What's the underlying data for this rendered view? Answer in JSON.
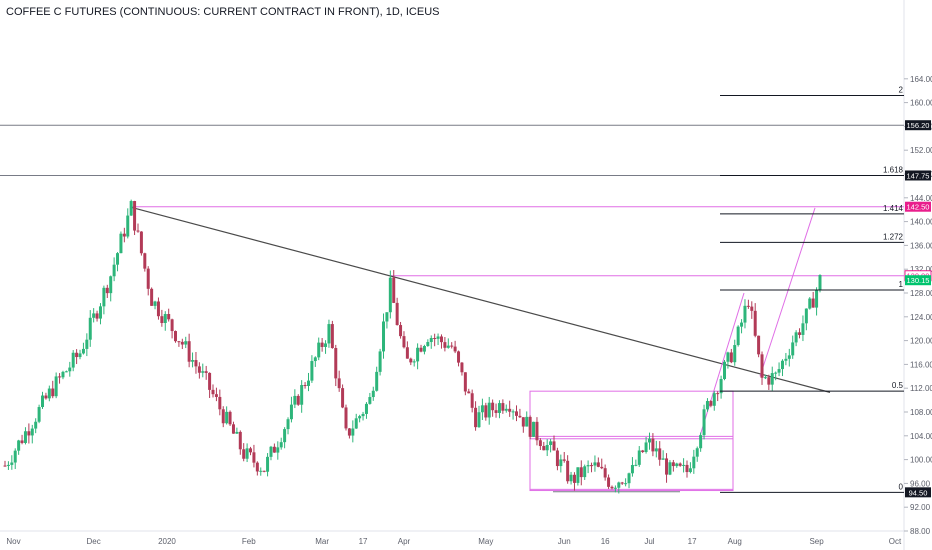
{
  "chart_data": {
    "type": "candlestick",
    "title": "COFFEE C FUTURES (CONTINUOUS: CURRENT CONTRACT IN FRONT), 1D, ICEUS",
    "ylim": [
      88,
      164
    ],
    "y_ticks": [
      "88.00",
      "92.00",
      "96.00",
      "100.00",
      "104.00",
      "108.00",
      "112.00",
      "116.00",
      "120.00",
      "124.00",
      "128.00",
      "132.00",
      "136.00",
      "140.00",
      "144.00",
      "148.00",
      "152.00",
      "156.00",
      "160.00",
      "164.00"
    ],
    "x_ticks": [
      {
        "label": "Nov",
        "day": 5
      },
      {
        "label": "Dec",
        "day": 52
      },
      {
        "label": "2020",
        "day": 95
      },
      {
        "label": "Feb",
        "day": 143
      },
      {
        "label": "Mar",
        "day": 186
      },
      {
        "label": "17",
        "day": 210
      },
      {
        "label": "Apr",
        "day": 234
      },
      {
        "label": "May",
        "day": 282
      },
      {
        "label": "Jun",
        "day": 328
      },
      {
        "label": "16",
        "day": 352
      },
      {
        "label": "Jul",
        "day": 378
      },
      {
        "label": "17",
        "day": 403
      },
      {
        "label": "Aug",
        "day": 428
      },
      {
        "label": "Sep",
        "day": 476
      },
      {
        "label": "Oct",
        "day": 522
      }
    ],
    "colors": {
      "up": "#2db57a",
      "down": "#b23a57",
      "fib": "#131722",
      "trend": "#4a4a4a",
      "pink": "#e06ee6",
      "tag_pink": "#e91e8c",
      "tag_green": "#00c46e"
    },
    "series": [
      {
        "day": 0,
        "close": 99
      },
      {
        "day": 28,
        "close": 112
      },
      {
        "day": 44,
        "close": 118
      },
      {
        "day": 62,
        "close": 131
      },
      {
        "day": 74,
        "close": 142.4
      },
      {
        "day": 86,
        "close": 127
      },
      {
        "day": 103,
        "close": 120
      },
      {
        "day": 118,
        "close": 113
      },
      {
        "day": 140,
        "close": 101
      },
      {
        "day": 152,
        "close": 98.5
      },
      {
        "day": 168,
        "close": 108
      },
      {
        "day": 190,
        "close": 122
      },
      {
        "day": 200,
        "close": 104
      },
      {
        "day": 214,
        "close": 110
      },
      {
        "day": 226,
        "close": 129
      },
      {
        "day": 235,
        "close": 116
      },
      {
        "day": 248,
        "close": 121
      },
      {
        "day": 262,
        "close": 119
      },
      {
        "day": 276,
        "close": 107
      },
      {
        "day": 295,
        "close": 110
      },
      {
        "day": 306,
        "close": 106
      },
      {
        "day": 322,
        "close": 101
      },
      {
        "day": 332,
        "close": 96.5
      },
      {
        "day": 345,
        "close": 99
      },
      {
        "day": 356,
        "close": 96
      },
      {
        "day": 368,
        "close": 98
      },
      {
        "day": 377,
        "close": 103
      },
      {
        "day": 390,
        "close": 98
      },
      {
        "day": 400,
        "close": 98
      },
      {
        "day": 412,
        "close": 109
      },
      {
        "day": 428,
        "close": 119
      },
      {
        "day": 436,
        "close": 127
      },
      {
        "day": 444,
        "close": 113.5
      },
      {
        "day": 452,
        "close": 114
      },
      {
        "day": 462,
        "close": 120
      },
      {
        "day": 470,
        "close": 124
      },
      {
        "day": 478,
        "close": 130.2
      }
    ],
    "price_tags": [
      {
        "price": 156.2,
        "label": "156.20",
        "style": "dark"
      },
      {
        "price": 147.75,
        "label": "147.75",
        "style": "dark"
      },
      {
        "price": 142.5,
        "label": "142.50",
        "style": "pink"
      },
      {
        "price": 130.9,
        "label": "130.90",
        "style": "pink_outline"
      },
      {
        "price": 130.15,
        "label": "130.15",
        "style": "green"
      },
      {
        "price": 94.5,
        "label": "94.50",
        "style": "dark"
      }
    ],
    "fib_levels": [
      {
        "label": "2",
        "price": 161.2
      },
      {
        "label": "1.618",
        "price": 147.75
      },
      {
        "label": "1.414",
        "price": 141.3
      },
      {
        "label": "1.272",
        "price": 136.5
      },
      {
        "label": "1",
        "price": 128.5
      },
      {
        "label": "0.5",
        "price": 111.5
      },
      {
        "label": "0",
        "price": 94.5
      }
    ],
    "hlines": [
      156.2,
      147.75
    ]
  }
}
